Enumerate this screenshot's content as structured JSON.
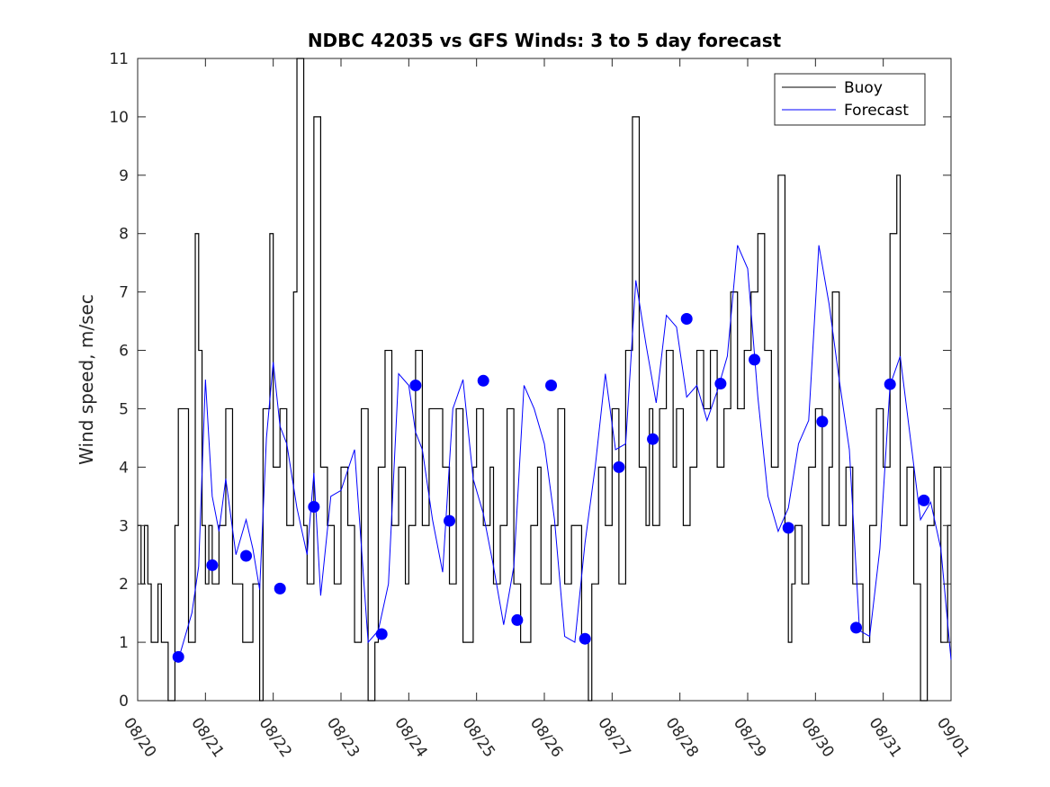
{
  "chart_data": {
    "type": "line",
    "title": "NDBC 42035 vs GFS Winds: 3 to 5 day forecast",
    "xlabel": "",
    "ylabel": "Wind speed, m/sec",
    "xlim": [
      0,
      12
    ],
    "ylim": [
      0,
      11
    ],
    "grid": false,
    "legend_position": "top-right",
    "x_tick_labels": [
      "08/20",
      "08/21",
      "08/22",
      "08/23",
      "08/24",
      "08/25",
      "08/26",
      "08/27",
      "08/28",
      "08/29",
      "08/30",
      "08/31",
      "09/01"
    ],
    "y_ticks": [
      0,
      1,
      2,
      3,
      4,
      5,
      6,
      7,
      8,
      9,
      10,
      11
    ],
    "series": [
      {
        "name": "Buoy",
        "color": "#000000",
        "style": "step-line",
        "x": [
          0.0,
          0.05,
          0.1,
          0.15,
          0.2,
          0.3,
          0.35,
          0.45,
          0.55,
          0.6,
          0.75,
          0.85,
          0.9,
          0.95,
          1.0,
          1.05,
          1.1,
          1.2,
          1.3,
          1.4,
          1.55,
          1.7,
          1.8,
          1.85,
          1.95,
          2.0,
          2.1,
          2.2,
          2.3,
          2.35,
          2.45,
          2.5,
          2.6,
          2.7,
          2.8,
          2.9,
          3.0,
          3.1,
          3.2,
          3.3,
          3.4,
          3.5,
          3.55,
          3.65,
          3.75,
          3.85,
          3.95,
          4.0,
          4.1,
          4.2,
          4.3,
          4.5,
          4.6,
          4.7,
          4.8,
          4.95,
          5.0,
          5.1,
          5.2,
          5.25,
          5.35,
          5.45,
          5.55,
          5.65,
          5.8,
          5.9,
          5.95,
          6.1,
          6.2,
          6.3,
          6.4,
          6.55,
          6.65,
          6.7,
          6.8,
          6.9,
          7.0,
          7.1,
          7.2,
          7.3,
          7.4,
          7.5,
          7.55,
          7.6,
          7.7,
          7.8,
          7.9,
          7.95,
          8.05,
          8.15,
          8.25,
          8.35,
          8.45,
          8.55,
          8.65,
          8.75,
          8.85,
          8.95,
          9.05,
          9.15,
          9.25,
          9.35,
          9.45,
          9.55,
          9.6,
          9.65,
          9.7,
          9.8,
          9.9,
          10.0,
          10.1,
          10.2,
          10.25,
          10.35,
          10.45,
          10.55,
          10.7,
          10.8,
          10.9,
          11.0,
          11.1,
          11.2,
          11.25,
          11.35,
          11.45,
          11.55,
          11.65,
          11.75,
          11.85,
          11.95,
          12.0
        ],
        "y": [
          3,
          2,
          3,
          2,
          1,
          2,
          1,
          0,
          3,
          5,
          1,
          8,
          6,
          3,
          2,
          3,
          2,
          3,
          5,
          2,
          1,
          2,
          0,
          5,
          8,
          4,
          5,
          3,
          7,
          11,
          3,
          2,
          10,
          4,
          3,
          2,
          4,
          3,
          1,
          5,
          0,
          1,
          4,
          6,
          3,
          4,
          2,
          3,
          6,
          3,
          5,
          4,
          2,
          5,
          1,
          4,
          5,
          3,
          4,
          2,
          3,
          5,
          2,
          1,
          3,
          4,
          2,
          3,
          5,
          2,
          3,
          1,
          0,
          2,
          4,
          3,
          5,
          2,
          6,
          10,
          4,
          3,
          5,
          3,
          5,
          6,
          4,
          5,
          3,
          4,
          6,
          5,
          6,
          4,
          5,
          7,
          5,
          6,
          7,
          8,
          6,
          4,
          9,
          3,
          1,
          2,
          3,
          2,
          4,
          5,
          3,
          4,
          7,
          3,
          4,
          2,
          1,
          3,
          5,
          4,
          8,
          9,
          3,
          4,
          2,
          0,
          3,
          4,
          1,
          3,
          3
        ]
      },
      {
        "name": "Forecast",
        "color": "#0000ff",
        "style": "line",
        "x": [
          0.6,
          0.8,
          0.9,
          1.0,
          1.1,
          1.2,
          1.3,
          1.45,
          1.6,
          1.7,
          1.8,
          1.9,
          2.0,
          2.1,
          2.2,
          2.35,
          2.5,
          2.6,
          2.7,
          2.85,
          3.0,
          3.2,
          3.4,
          3.55,
          3.7,
          3.85,
          4.0,
          4.1,
          4.2,
          4.35,
          4.5,
          4.65,
          4.8,
          4.95,
          5.1,
          5.25,
          5.4,
          5.55,
          5.7,
          5.85,
          6.0,
          6.15,
          6.3,
          6.45,
          6.6,
          6.75,
          6.9,
          7.05,
          7.2,
          7.35,
          7.5,
          7.65,
          7.8,
          7.95,
          8.1,
          8.25,
          8.4,
          8.55,
          8.7,
          8.85,
          9.0,
          9.15,
          9.3,
          9.45,
          9.6,
          9.75,
          9.9,
          10.05,
          10.2,
          10.35,
          10.5,
          10.65,
          10.8,
          10.95,
          11.1,
          11.25,
          11.4,
          11.55,
          11.7,
          11.85,
          12.0
        ],
        "y": [
          0.7,
          1.5,
          2.3,
          5.5,
          3.5,
          2.9,
          3.8,
          2.5,
          3.1,
          2.6,
          1.9,
          4.5,
          5.8,
          4.7,
          4.4,
          3.3,
          2.5,
          3.9,
          1.8,
          3.5,
          3.6,
          4.3,
          1.0,
          1.2,
          2.0,
          5.6,
          5.4,
          4.6,
          4.3,
          3.1,
          2.2,
          5.0,
          5.5,
          3.8,
          3.2,
          2.3,
          1.3,
          2.3,
          5.4,
          5.0,
          4.4,
          3.1,
          1.1,
          1.0,
          2.7,
          4.0,
          5.6,
          4.3,
          4.4,
          7.2,
          6.1,
          5.1,
          6.6,
          6.4,
          5.2,
          5.4,
          4.8,
          5.3,
          5.9,
          7.8,
          7.4,
          5.2,
          3.5,
          2.9,
          3.3,
          4.4,
          4.8,
          7.8,
          6.8,
          5.5,
          4.3,
          1.2,
          1.1,
          2.6,
          5.4,
          5.9,
          4.5,
          3.1,
          3.4,
          2.6,
          0.7
        ]
      },
      {
        "name": "Forecast markers",
        "color": "#0000ff",
        "style": "markers",
        "x": [
          0.6,
          1.1,
          1.6,
          2.1,
          2.6,
          3.6,
          4.1,
          4.6,
          5.1,
          5.6,
          6.1,
          6.6,
          7.1,
          7.6,
          8.1,
          8.6,
          9.1,
          9.6,
          10.1,
          10.6,
          11.1,
          11.6
        ],
        "y": [
          0.75,
          2.32,
          2.48,
          1.92,
          3.32,
          1.14,
          5.4,
          3.08,
          5.48,
          1.38,
          5.4,
          1.06,
          4.0,
          4.48,
          6.54,
          5.43,
          5.84,
          2.96,
          4.78,
          1.25,
          5.42,
          3.43
        ]
      }
    ]
  }
}
